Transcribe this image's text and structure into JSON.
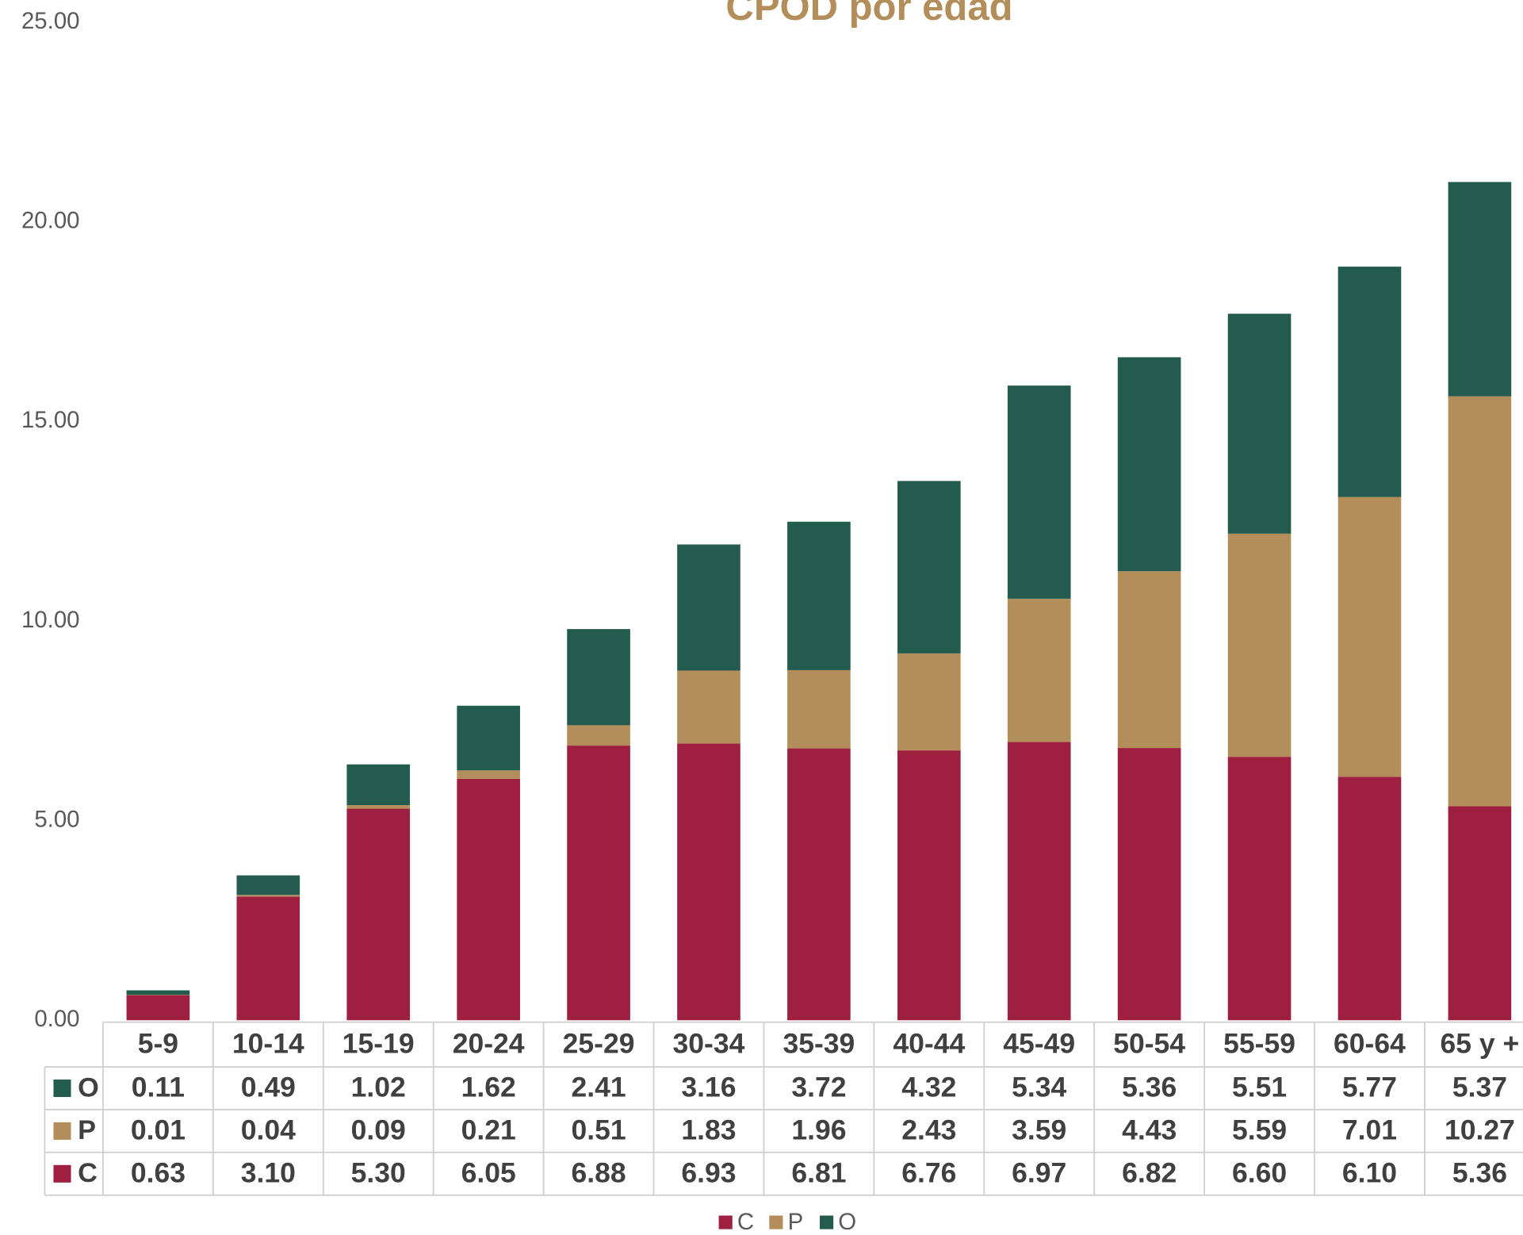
{
  "chart_data": {
    "type": "bar",
    "stacked": true,
    "title": "CPOD por edad",
    "categories": [
      "5-9",
      "10-14",
      "15-19",
      "20-24",
      "25-29",
      "30-34",
      "35-39",
      "40-44",
      "45-49",
      "50-54",
      "55-59",
      "60-64",
      "65 y +"
    ],
    "series": [
      {
        "name": "C",
        "color": "#9e1f3f",
        "values": [
          0.63,
          3.1,
          5.3,
          6.05,
          6.88,
          6.93,
          6.81,
          6.76,
          6.97,
          6.82,
          6.6,
          6.1,
          5.36
        ],
        "value_labels": [
          "0.63",
          "3.10",
          "5.30",
          "6.05",
          "6.88",
          "6.93",
          "6.81",
          "6.76",
          "6.97",
          "6.82",
          "6.60",
          "6.10",
          "5.36"
        ]
      },
      {
        "name": "P",
        "color": "#b38e5a",
        "values": [
          0.01,
          0.04,
          0.09,
          0.21,
          0.51,
          1.83,
          1.96,
          2.43,
          3.59,
          4.43,
          5.59,
          7.01,
          10.27
        ],
        "value_labels": [
          "0.01",
          "0.04",
          "0.09",
          "0.21",
          "0.51",
          "1.83",
          "1.96",
          "2.43",
          "3.59",
          "4.43",
          "5.59",
          "7.01",
          "10.27"
        ]
      },
      {
        "name": "O",
        "color": "#235b4e",
        "values": [
          0.11,
          0.49,
          1.02,
          1.62,
          2.41,
          3.16,
          3.72,
          4.32,
          5.34,
          5.36,
          5.51,
          5.77,
          5.37
        ],
        "value_labels": [
          "0.11",
          "0.49",
          "1.02",
          "1.62",
          "2.41",
          "3.16",
          "3.72",
          "4.32",
          "5.34",
          "5.36",
          "5.51",
          "5.77",
          "5.37"
        ]
      }
    ],
    "ylim": [
      0,
      25
    ],
    "yticks": [
      {
        "value": 0,
        "label": "0.00"
      },
      {
        "value": 5,
        "label": "5.00"
      },
      {
        "value": 10,
        "label": "10.00"
      },
      {
        "value": 15,
        "label": "15.00"
      },
      {
        "value": 20,
        "label": "20.00"
      },
      {
        "value": 25,
        "label": "25.00"
      }
    ],
    "grid": false,
    "legend": "bottom",
    "data_table": true
  }
}
